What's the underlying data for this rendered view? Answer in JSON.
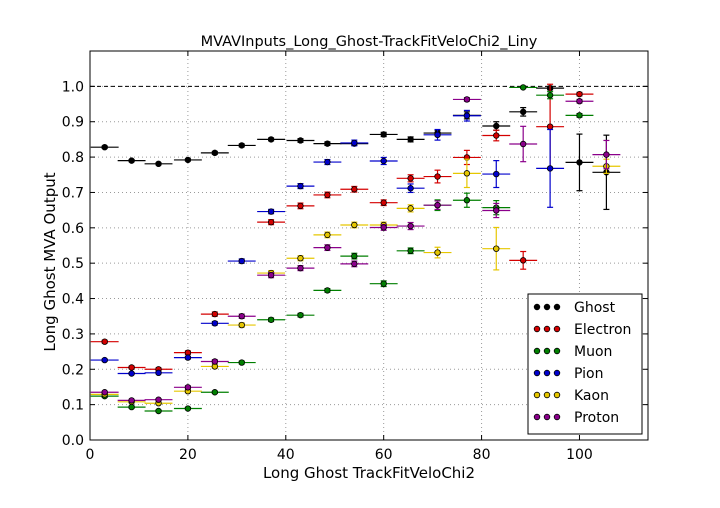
{
  "chart_data": {
    "type": "scatter",
    "title": "MVAVInputs_Long_Ghost-TrackFitVeloChi2_Liny",
    "xlabel": "Long Ghost TrackFitVeloChi2",
    "ylabel": "Long Ghost MVA Output",
    "xlim": [
      0,
      114
    ],
    "ylim": [
      0,
      1.1
    ],
    "x_ticks": [
      "0",
      "20",
      "40",
      "60",
      "80",
      "100"
    ],
    "x_tick_values": [
      0,
      20,
      40,
      60,
      80,
      100
    ],
    "y_ticks": [
      "0.0",
      "0.1",
      "0.2",
      "0.3",
      "0.4",
      "0.5",
      "0.6",
      "0.7",
      "0.8",
      "0.9",
      "1.0"
    ],
    "y_tick_values": [
      0.0,
      0.1,
      0.2,
      0.3,
      0.4,
      0.5,
      0.6,
      0.7,
      0.8,
      0.9,
      1.0
    ],
    "grid": true,
    "reference_line_y": 1.0,
    "x_half_width": 2.85,
    "legend_position": "lower-right",
    "series": [
      {
        "name": "Ghost",
        "color": "#000000",
        "x": [
          3,
          8.5,
          14,
          20,
          25.5,
          31,
          37,
          43,
          48.5,
          54,
          60,
          65.5,
          71,
          77,
          83,
          88.5,
          94,
          100,
          105.5
        ],
        "y": [
          0.828,
          0.79,
          0.781,
          0.792,
          0.812,
          0.833,
          0.85,
          0.847,
          0.838,
          0.838,
          0.864,
          0.85,
          0.868,
          0.918,
          0.888,
          0.928,
          0.995,
          0.785,
          0.757
        ],
        "yerr": [
          0.003,
          0.003,
          0.003,
          0.003,
          0.004,
          0.004,
          0.004,
          0.005,
          0.005,
          0.005,
          0.006,
          0.007,
          0.008,
          0.01,
          0.012,
          0.012,
          0.005,
          0.08,
          0.105
        ]
      },
      {
        "name": "Electron",
        "color": "#d40000",
        "x": [
          3,
          8.5,
          14,
          20,
          25.5,
          37,
          43,
          48.5,
          54,
          60,
          65.5,
          71,
          77,
          83,
          88.5,
          94,
          100
        ],
        "y": [
          0.278,
          0.205,
          0.2,
          0.247,
          0.356,
          0.616,
          0.662,
          0.693,
          0.709,
          0.671,
          0.74,
          0.745,
          0.799,
          0.861,
          0.508,
          0.886,
          0.978
        ],
        "yerr": [
          0.004,
          0.004,
          0.004,
          0.005,
          0.006,
          0.007,
          0.008,
          0.008,
          0.008,
          0.008,
          0.01,
          0.018,
          0.02,
          0.015,
          0.025,
          0.12,
          0.005
        ]
      },
      {
        "name": "Muon",
        "color": "#007f00",
        "x": [
          3,
          8.5,
          14,
          20,
          25.5,
          31,
          37,
          43,
          48.5,
          54,
          60,
          65.5,
          71,
          77,
          83,
          88.5,
          94,
          100
        ],
        "y": [
          0.124,
          0.093,
          0.082,
          0.089,
          0.135,
          0.219,
          0.34,
          0.353,
          0.423,
          0.52,
          0.442,
          0.535,
          0.664,
          0.678,
          0.657,
          0.997,
          0.975,
          0.918
        ],
        "yerr": [
          0.003,
          0.003,
          0.003,
          0.003,
          0.003,
          0.004,
          0.005,
          0.005,
          0.005,
          0.008,
          0.008,
          0.008,
          0.015,
          0.02,
          0.02,
          0.003,
          0.01,
          0.005
        ]
      },
      {
        "name": "Pion",
        "color": "#0000cc",
        "x": [
          3,
          8.5,
          14,
          20,
          25.5,
          31,
          37,
          43,
          48.5,
          54,
          60,
          65.5,
          71,
          77,
          83,
          94
        ],
        "y": [
          0.226,
          0.188,
          0.19,
          0.233,
          0.33,
          0.506,
          0.646,
          0.718,
          0.786,
          0.84,
          0.789,
          0.712,
          0.863,
          0.917,
          0.752,
          0.768
        ],
        "yerr": [
          0.003,
          0.003,
          0.003,
          0.004,
          0.005,
          0.006,
          0.006,
          0.007,
          0.007,
          0.008,
          0.01,
          0.012,
          0.015,
          0.015,
          0.038,
          0.11
        ]
      },
      {
        "name": "Kaon",
        "color": "#e6c700",
        "x": [
          3,
          8.5,
          14,
          20,
          25.5,
          31,
          37,
          43,
          48.5,
          54,
          60,
          65.5,
          71,
          77,
          83,
          105.5
        ],
        "y": [
          0.129,
          0.108,
          0.104,
          0.138,
          0.208,
          0.325,
          0.472,
          0.514,
          0.58,
          0.608,
          0.608,
          0.655,
          0.53,
          0.754,
          0.541,
          0.774
        ],
        "yerr": [
          0.003,
          0.003,
          0.003,
          0.004,
          0.005,
          0.006,
          0.007,
          0.007,
          0.008,
          0.008,
          0.008,
          0.01,
          0.015,
          0.04,
          0.06,
          0.02
        ]
      },
      {
        "name": "Proton",
        "color": "#8b008b",
        "x": [
          3,
          8.5,
          14,
          20,
          25.5,
          31,
          37,
          43,
          48.5,
          54,
          60,
          65.5,
          71,
          77,
          83,
          88.5,
          100,
          105.5
        ],
        "y": [
          0.135,
          0.112,
          0.114,
          0.149,
          0.222,
          0.35,
          0.466,
          0.486,
          0.544,
          0.498,
          0.601,
          0.605,
          0.664,
          0.963,
          0.649,
          0.837,
          0.958,
          0.807
        ],
        "yerr": [
          0.003,
          0.003,
          0.003,
          0.004,
          0.005,
          0.006,
          0.007,
          0.007,
          0.008,
          0.008,
          0.008,
          0.01,
          0.012,
          0.005,
          0.02,
          0.05,
          0.005,
          0.04
        ]
      }
    ]
  }
}
